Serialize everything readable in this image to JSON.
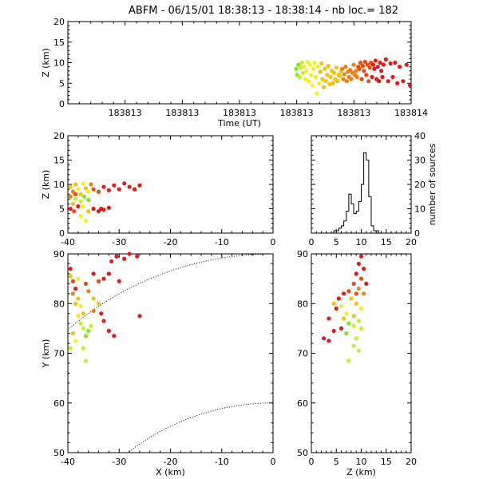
{
  "title": "ABFM - 06/15/01 18:38:13 - 18:38:14 - nb loc.=     182",
  "colors": [
    "#7ee81a",
    "#c6f02a",
    "#f5f020",
    "#f5c010",
    "#f08010",
    "#f04a0a",
    "#e81818"
  ],
  "panels": {
    "time_alt": {
      "xlabel": "Time (UT)",
      "ylabel": "Z (km)",
      "xticks": [
        "183813",
        "183813",
        "183813",
        "183813",
        "183813",
        "183814"
      ],
      "ylim": [
        0,
        20
      ],
      "yticks": [
        "0",
        "5",
        "10",
        "15",
        "20"
      ]
    },
    "x_alt": {
      "ylabel": "Z (km)",
      "xlim": [
        -40,
        0
      ],
      "ylim": [
        0,
        20
      ],
      "xticks": [
        "-40",
        "-30",
        "-20",
        "-10",
        "0"
      ],
      "yticks": [
        "0",
        "5",
        "10",
        "15",
        "20"
      ]
    },
    "histogram": {
      "ylabel": "number of sources",
      "xlim": [
        0,
        20
      ],
      "ylim": [
        0,
        40
      ],
      "xticks": [
        "0",
        "5",
        "10",
        "15",
        "20"
      ],
      "yticks": [
        "0",
        "10",
        "20",
        "30",
        "40"
      ]
    },
    "plan": {
      "xlabel": "X (km)",
      "ylabel": "Y (km)",
      "xlim": [
        -40,
        0
      ],
      "ylim": [
        50,
        90
      ],
      "xticks": [
        "-40",
        "-30",
        "-20",
        "-10",
        "0"
      ],
      "yticks": [
        "50",
        "60",
        "70",
        "80",
        "90"
      ]
    },
    "alt_y": {
      "xlabel": "Z (km)",
      "xlim": [
        0,
        20
      ],
      "ylim": [
        50,
        90
      ],
      "xticks": [
        "0",
        "5",
        "10",
        "15",
        "20"
      ],
      "yticks": [
        "50",
        "60",
        "70",
        "80",
        "90"
      ]
    }
  },
  "chart_data": [
    {
      "type": "scatter",
      "panel": "time_alt",
      "xlabel": "Time (UT)",
      "ylabel": "Z (km)",
      "ylim": [
        0,
        20
      ],
      "grid": false,
      "points": [
        {
          "t": 0.0,
          "z": 8.5,
          "c": 0
        },
        {
          "t": 0.01,
          "z": 7.0,
          "c": 0
        },
        {
          "t": 0.02,
          "z": 9.5,
          "c": 0
        },
        {
          "t": 0.03,
          "z": 6.5,
          "c": 1
        },
        {
          "t": 0.04,
          "z": 8.8,
          "c": 1
        },
        {
          "t": 0.05,
          "z": 10.0,
          "c": 1
        },
        {
          "t": 0.06,
          "z": 7.5,
          "c": 1
        },
        {
          "t": 0.07,
          "z": 9.0,
          "c": 2
        },
        {
          "t": 0.08,
          "z": 6.0,
          "c": 2
        },
        {
          "t": 0.09,
          "z": 8.0,
          "c": 2
        },
        {
          "t": 0.1,
          "z": 10.2,
          "c": 2
        },
        {
          "t": 0.11,
          "z": 5.5,
          "c": 2
        },
        {
          "t": 0.12,
          "z": 9.5,
          "c": 2
        },
        {
          "t": 0.13,
          "z": 7.0,
          "c": 2
        },
        {
          "t": 0.14,
          "z": 4.5,
          "c": 2
        },
        {
          "t": 0.15,
          "z": 8.5,
          "c": 2
        },
        {
          "t": 0.16,
          "z": 10.0,
          "c": 2
        },
        {
          "t": 0.17,
          "z": 6.5,
          "c": 2
        },
        {
          "t": 0.18,
          "z": 2.5,
          "c": 2
        },
        {
          "t": 0.19,
          "z": 9.0,
          "c": 2
        },
        {
          "t": 0.2,
          "z": 5.0,
          "c": 2
        },
        {
          "t": 0.21,
          "z": 7.8,
          "c": 3
        },
        {
          "t": 0.22,
          "z": 9.8,
          "c": 3
        },
        {
          "t": 0.23,
          "z": 6.0,
          "c": 3
        },
        {
          "t": 0.24,
          "z": 4.0,
          "c": 3
        },
        {
          "t": 0.25,
          "z": 8.5,
          "c": 3
        },
        {
          "t": 0.26,
          "z": 5.5,
          "c": 3
        },
        {
          "t": 0.27,
          "z": 7.0,
          "c": 3
        },
        {
          "t": 0.28,
          "z": 9.2,
          "c": 3
        },
        {
          "t": 0.29,
          "z": 4.8,
          "c": 3
        },
        {
          "t": 0.3,
          "z": 6.5,
          "c": 3
        },
        {
          "t": 0.31,
          "z": 8.0,
          "c": 3
        },
        {
          "t": 0.32,
          "z": 5.0,
          "c": 3
        },
        {
          "t": 0.33,
          "z": 7.5,
          "c": 3
        },
        {
          "t": 0.34,
          "z": 6.0,
          "c": 3
        },
        {
          "t": 0.35,
          "z": 8.8,
          "c": 3
        },
        {
          "t": 0.36,
          "z": 5.5,
          "c": 3
        },
        {
          "t": 0.37,
          "z": 7.0,
          "c": 3
        },
        {
          "t": 0.38,
          "z": 6.8,
          "c": 3
        },
        {
          "t": 0.39,
          "z": 7.8,
          "c": 3
        },
        {
          "t": 0.4,
          "z": 8.5,
          "c": 4
        },
        {
          "t": 0.41,
          "z": 6.0,
          "c": 4
        },
        {
          "t": 0.42,
          "z": 7.2,
          "c": 4
        },
        {
          "t": 0.43,
          "z": 9.0,
          "c": 4
        },
        {
          "t": 0.44,
          "z": 5.5,
          "c": 4
        },
        {
          "t": 0.45,
          "z": 7.8,
          "c": 4
        },
        {
          "t": 0.46,
          "z": 6.5,
          "c": 4
        },
        {
          "t": 0.47,
          "z": 8.2,
          "c": 4
        },
        {
          "t": 0.48,
          "z": 6.0,
          "c": 4
        },
        {
          "t": 0.49,
          "z": 7.5,
          "c": 4
        },
        {
          "t": 0.5,
          "z": 9.5,
          "c": 4
        },
        {
          "t": 0.51,
          "z": 7.0,
          "c": 4
        },
        {
          "t": 0.52,
          "z": 8.0,
          "c": 4
        },
        {
          "t": 0.53,
          "z": 6.5,
          "c": 4
        },
        {
          "t": 0.54,
          "z": 9.0,
          "c": 5
        },
        {
          "t": 0.55,
          "z": 8.5,
          "c": 5
        },
        {
          "t": 0.56,
          "z": 10.0,
          "c": 5
        },
        {
          "t": 0.57,
          "z": 6.0,
          "c": 5
        },
        {
          "t": 0.58,
          "z": 9.2,
          "c": 5
        },
        {
          "t": 0.59,
          "z": 8.0,
          "c": 5
        },
        {
          "t": 0.6,
          "z": 10.2,
          "c": 5
        },
        {
          "t": 0.61,
          "z": 7.0,
          "c": 5
        },
        {
          "t": 0.62,
          "z": 9.5,
          "c": 5
        },
        {
          "t": 0.63,
          "z": 5.5,
          "c": 5
        },
        {
          "t": 0.64,
          "z": 8.8,
          "c": 5
        },
        {
          "t": 0.65,
          "z": 10.0,
          "c": 5
        },
        {
          "t": 0.66,
          "z": 6.5,
          "c": 6
        },
        {
          "t": 0.67,
          "z": 9.5,
          "c": 6
        },
        {
          "t": 0.68,
          "z": 8.5,
          "c": 6
        },
        {
          "t": 0.69,
          "z": 10.5,
          "c": 6
        },
        {
          "t": 0.7,
          "z": 6.0,
          "c": 6
        },
        {
          "t": 0.71,
          "z": 9.0,
          "c": 6
        },
        {
          "t": 0.72,
          "z": 5.5,
          "c": 6
        },
        {
          "t": 0.73,
          "z": 10.0,
          "c": 6
        },
        {
          "t": 0.74,
          "z": 8.0,
          "c": 6
        },
        {
          "t": 0.75,
          "z": 6.5,
          "c": 6
        },
        {
          "t": 0.76,
          "z": 9.5,
          "c": 6
        },
        {
          "t": 0.78,
          "z": 10.8,
          "c": 6
        },
        {
          "t": 0.8,
          "z": 5.5,
          "c": 6
        },
        {
          "t": 0.82,
          "z": 9.8,
          "c": 6
        },
        {
          "t": 0.84,
          "z": 6.5,
          "c": 6
        },
        {
          "t": 0.86,
          "z": 10.0,
          "c": 6
        },
        {
          "t": 0.88,
          "z": 5.0,
          "c": 6
        },
        {
          "t": 0.9,
          "z": 9.0,
          "c": 6
        },
        {
          "t": 0.93,
          "z": 5.5,
          "c": 6
        },
        {
          "t": 0.96,
          "z": 9.5,
          "c": 6
        },
        {
          "t": 0.99,
          "z": 4.5,
          "c": 6
        }
      ]
    },
    {
      "type": "scatter",
      "panel": "x_alt",
      "xlabel": "",
      "ylabel": "Z (km)",
      "xlim": [
        -40,
        0
      ],
      "ylim": [
        0,
        20
      ],
      "grid": false,
      "points": [
        {
          "x": -39.5,
          "z": 9.5,
          "c": 3
        },
        {
          "x": -39.0,
          "z": 8.5,
          "c": 4
        },
        {
          "x": -38.5,
          "z": 10.0,
          "c": 3
        },
        {
          "x": -38.0,
          "z": 9.0,
          "c": 2
        },
        {
          "x": -37.5,
          "z": 8.0,
          "c": 3
        },
        {
          "x": -37.0,
          "z": 10.2,
          "c": 2
        },
        {
          "x": -36.5,
          "z": 9.2,
          "c": 3
        },
        {
          "x": -36.0,
          "z": 8.5,
          "c": 2
        },
        {
          "x": -35.5,
          "z": 10.0,
          "c": 4
        },
        {
          "x": -38.5,
          "z": 7.0,
          "c": 1
        },
        {
          "x": -37.5,
          "z": 6.5,
          "c": 1
        },
        {
          "x": -36.8,
          "z": 7.5,
          "c": 0
        },
        {
          "x": -36.0,
          "z": 6.8,
          "c": 0
        },
        {
          "x": -37.0,
          "z": 5.5,
          "c": 2
        },
        {
          "x": -36.0,
          "z": 4.5,
          "c": 3
        },
        {
          "x": -39.5,
          "z": 5.0,
          "c": 6
        },
        {
          "x": -38.8,
          "z": 4.5,
          "c": 5
        },
        {
          "x": -38.0,
          "z": 5.5,
          "c": 6
        },
        {
          "x": -37.5,
          "z": 3.5,
          "c": 2
        },
        {
          "x": -36.5,
          "z": 2.5,
          "c": 2
        },
        {
          "x": -35.0,
          "z": 5.0,
          "c": 6
        },
        {
          "x": -34.0,
          "z": 4.5,
          "c": 6
        },
        {
          "x": -33.5,
          "z": 5.0,
          "c": 6
        },
        {
          "x": -33.0,
          "z": 4.8,
          "c": 6
        },
        {
          "x": -32.0,
          "z": 5.2,
          "c": 6
        },
        {
          "x": -35.0,
          "z": 9.0,
          "c": 5
        },
        {
          "x": -34.0,
          "z": 8.5,
          "c": 5
        },
        {
          "x": -33.0,
          "z": 9.5,
          "c": 6
        },
        {
          "x": -32.0,
          "z": 8.8,
          "c": 6
        },
        {
          "x": -31.0,
          "z": 9.8,
          "c": 6
        },
        {
          "x": -30.0,
          "z": 9.0,
          "c": 6
        },
        {
          "x": -29.0,
          "z": 10.2,
          "c": 6
        },
        {
          "x": -28.0,
          "z": 9.5,
          "c": 6
        },
        {
          "x": -27.0,
          "z": 9.0,
          "c": 6
        },
        {
          "x": -26.0,
          "z": 9.8,
          "c": 6
        },
        {
          "x": -39.0,
          "z": 6.0,
          "c": 3
        },
        {
          "x": -38.5,
          "z": 8.0,
          "c": 5
        },
        {
          "x": -39.5,
          "z": 7.5,
          "c": 4
        }
      ]
    },
    {
      "type": "bar",
      "panel": "histogram",
      "xlabel": "",
      "ylabel": "number of sources",
      "xlim": [
        0,
        20
      ],
      "ylim": [
        0,
        40
      ],
      "grid": false,
      "bin_width": 0.5,
      "x_start": 0,
      "values": [
        0,
        0,
        0,
        0,
        0,
        0,
        0,
        0,
        0,
        1,
        1,
        2,
        3,
        5,
        9,
        16,
        12,
        8,
        9,
        13,
        20,
        33,
        30,
        15,
        3,
        1,
        1,
        0,
        0,
        0,
        0,
        0,
        0,
        0,
        0,
        0,
        0,
        0,
        0,
        0
      ]
    },
    {
      "type": "scatter",
      "panel": "plan",
      "xlabel": "X (km)",
      "ylabel": "Y (km)",
      "xlim": [
        -40,
        0
      ],
      "ylim": [
        50,
        90
      ],
      "grid": false,
      "points": [
        {
          "x": -39.5,
          "y": 87.0,
          "c": 6
        },
        {
          "x": -39.0,
          "y": 84.5,
          "c": 5
        },
        {
          "x": -38.5,
          "y": 83.0,
          "c": 6
        },
        {
          "x": -39.0,
          "y": 82.0,
          "c": 4
        },
        {
          "x": -38.0,
          "y": 81.0,
          "c": 3
        },
        {
          "x": -38.5,
          "y": 80.0,
          "c": 3
        },
        {
          "x": -37.5,
          "y": 79.5,
          "c": 2
        },
        {
          "x": -37.0,
          "y": 78.0,
          "c": 3
        },
        {
          "x": -38.0,
          "y": 77.5,
          "c": 2
        },
        {
          "x": -37.5,
          "y": 76.0,
          "c": 1
        },
        {
          "x": -37.0,
          "y": 75.0,
          "c": 1
        },
        {
          "x": -36.0,
          "y": 74.5,
          "c": 0
        },
        {
          "x": -35.5,
          "y": 75.5,
          "c": 1
        },
        {
          "x": -36.5,
          "y": 73.5,
          "c": 0
        },
        {
          "x": -38.5,
          "y": 72.5,
          "c": 2
        },
        {
          "x": -39.5,
          "y": 71.0,
          "c": 1
        },
        {
          "x": -36.5,
          "y": 68.5,
          "c": 1
        },
        {
          "x": -39.5,
          "y": 85.5,
          "c": 3
        },
        {
          "x": -38.0,
          "y": 85.0,
          "c": 2
        },
        {
          "x": -36.5,
          "y": 84.0,
          "c": 5
        },
        {
          "x": -36.0,
          "y": 82.5,
          "c": 4
        },
        {
          "x": -35.0,
          "y": 81.0,
          "c": 3
        },
        {
          "x": -34.0,
          "y": 80.0,
          "c": 3
        },
        {
          "x": -35.0,
          "y": 78.5,
          "c": 4
        },
        {
          "x": -33.5,
          "y": 78.0,
          "c": 6
        },
        {
          "x": -33.0,
          "y": 76.5,
          "c": 6
        },
        {
          "x": -32.0,
          "y": 74.5,
          "c": 6
        },
        {
          "x": -31.0,
          "y": 73.5,
          "c": 6
        },
        {
          "x": -34.0,
          "y": 84.5,
          "c": 5
        },
        {
          "x": -33.0,
          "y": 85.0,
          "c": 6
        },
        {
          "x": -32.0,
          "y": 86.0,
          "c": 6
        },
        {
          "x": -31.5,
          "y": 88.5,
          "c": 6
        },
        {
          "x": -30.5,
          "y": 89.5,
          "c": 6
        },
        {
          "x": -29.0,
          "y": 89.0,
          "c": 6
        },
        {
          "x": -28.0,
          "y": 90.0,
          "c": 6
        },
        {
          "x": -26.5,
          "y": 89.5,
          "c": 6
        },
        {
          "x": -30.0,
          "y": 84.5,
          "c": 6
        },
        {
          "x": -26.0,
          "y": 77.5,
          "c": 6
        },
        {
          "x": -35.0,
          "y": 86.0,
          "c": 6
        },
        {
          "x": -39.0,
          "y": 74.0,
          "c": 3
        },
        {
          "x": -37.0,
          "y": 71.0,
          "c": 1
        }
      ]
    },
    {
      "type": "scatter",
      "panel": "alt_y",
      "xlabel": "Z (km)",
      "ylabel": "",
      "xlim": [
        0,
        20
      ],
      "ylim": [
        50,
        90
      ],
      "grid": false,
      "points": [
        {
          "z": 10.0,
          "y": 89.5,
          "c": 6
        },
        {
          "z": 9.5,
          "y": 88.0,
          "c": 6
        },
        {
          "z": 10.5,
          "y": 87.0,
          "c": 6
        },
        {
          "z": 9.0,
          "y": 86.0,
          "c": 6
        },
        {
          "z": 10.0,
          "y": 85.0,
          "c": 5
        },
        {
          "z": 8.5,
          "y": 84.0,
          "c": 5
        },
        {
          "z": 9.5,
          "y": 83.0,
          "c": 4
        },
        {
          "z": 7.5,
          "y": 82.5,
          "c": 5
        },
        {
          "z": 6.5,
          "y": 82.0,
          "c": 6
        },
        {
          "z": 5.5,
          "y": 81.0,
          "c": 6
        },
        {
          "z": 8.0,
          "y": 81.0,
          "c": 3
        },
        {
          "z": 9.0,
          "y": 80.0,
          "c": 3
        },
        {
          "z": 4.5,
          "y": 80.0,
          "c": 3
        },
        {
          "z": 5.0,
          "y": 79.0,
          "c": 6
        },
        {
          "z": 6.0,
          "y": 79.5,
          "c": 2
        },
        {
          "z": 10.0,
          "y": 79.0,
          "c": 2
        },
        {
          "z": 7.0,
          "y": 78.0,
          "c": 2
        },
        {
          "z": 8.5,
          "y": 77.5,
          "c": 3
        },
        {
          "z": 6.5,
          "y": 77.0,
          "c": 3
        },
        {
          "z": 3.5,
          "y": 77.0,
          "c": 6
        },
        {
          "z": 9.5,
          "y": 76.5,
          "c": 1
        },
        {
          "z": 7.5,
          "y": 76.0,
          "c": 0
        },
        {
          "z": 8.5,
          "y": 75.5,
          "c": 1
        },
        {
          "z": 6.0,
          "y": 75.0,
          "c": 6
        },
        {
          "z": 10.0,
          "y": 75.0,
          "c": 1
        },
        {
          "z": 7.0,
          "y": 74.0,
          "c": 0
        },
        {
          "z": 4.5,
          "y": 74.5,
          "c": 6
        },
        {
          "z": 2.5,
          "y": 73.0,
          "c": 6
        },
        {
          "z": 3.5,
          "y": 72.5,
          "c": 6
        },
        {
          "z": 9.0,
          "y": 73.0,
          "c": 1
        },
        {
          "z": 8.5,
          "y": 71.5,
          "c": 1
        },
        {
          "z": 9.5,
          "y": 70.5,
          "c": 1
        },
        {
          "z": 7.5,
          "y": 68.5,
          "c": 1
        },
        {
          "z": 10.5,
          "y": 82.0,
          "c": 4
        },
        {
          "z": 11.0,
          "y": 84.0,
          "c": 6
        },
        {
          "z": 9.0,
          "y": 82.0,
          "c": 5
        }
      ]
    }
  ]
}
